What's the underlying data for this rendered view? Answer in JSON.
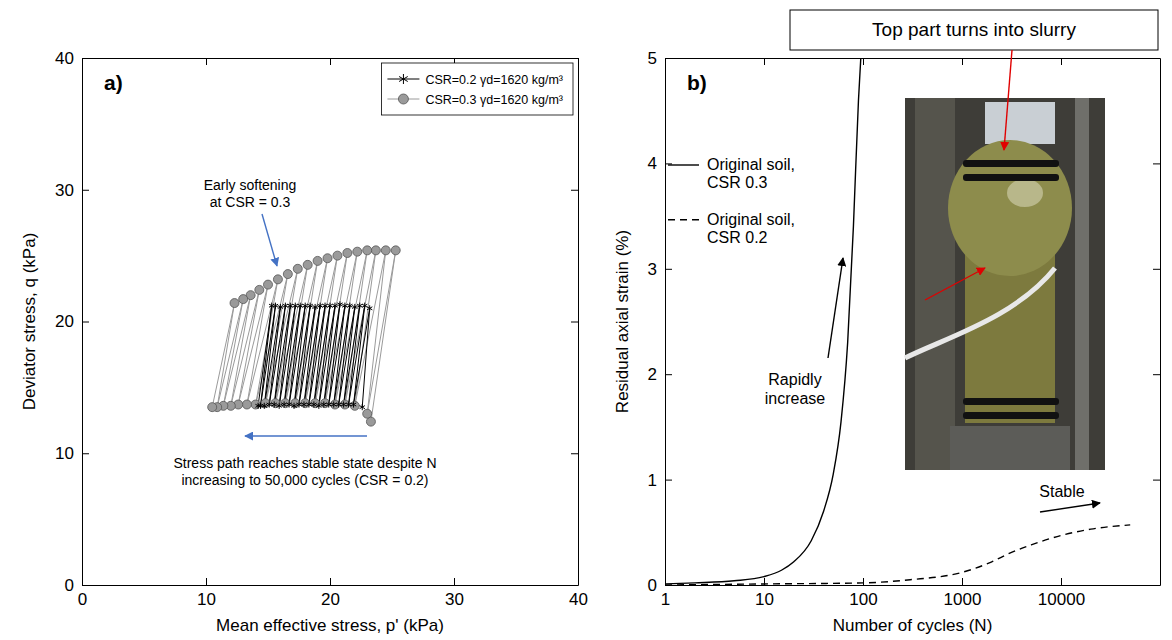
{
  "chart_data": [
    {
      "type": "line",
      "panel_label": "a)",
      "x_label": "Mean effective stress, p' (kPa)",
      "y_label": "Deviator stress, q (kPa)",
      "xlim": [
        0,
        40
      ],
      "xticks": [
        0,
        10,
        20,
        30,
        40
      ],
      "ylim": [
        0,
        40
      ],
      "yticks": [
        0,
        10,
        20,
        30,
        40
      ],
      "grid": false,
      "legend": "upper right",
      "series": [
        {
          "name": "CSR=0.2 γd=1620 kg/m³",
          "color": "#000000",
          "marker": "asterisk",
          "line_style": "solid",
          "x": [
            22.6,
            23.2,
            21.9,
            22.8,
            21.5,
            22.4,
            21.1,
            22.0,
            20.7,
            21.6,
            20.3,
            21.2,
            19.9,
            20.8,
            19.5,
            20.4,
            19.1,
            20.0,
            18.7,
            19.6,
            18.3,
            19.2,
            17.9,
            18.8,
            17.5,
            18.4,
            17.1,
            18.0,
            16.7,
            17.6,
            16.3,
            17.2,
            15.9,
            16.8,
            15.5,
            16.4,
            15.1,
            16.0,
            14.7,
            15.6,
            14.4,
            15.3,
            14.2
          ],
          "values": [
            13.5,
            21.0,
            13.7,
            21.2,
            13.7,
            21.2,
            13.7,
            21.1,
            13.7,
            21.2,
            13.7,
            21.2,
            13.7,
            21.3,
            13.7,
            21.2,
            13.6,
            21.2,
            13.7,
            21.2,
            13.7,
            21.2,
            13.7,
            21.1,
            13.7,
            21.2,
            13.6,
            21.2,
            13.7,
            21.2,
            13.7,
            21.2,
            13.6,
            21.2,
            13.7,
            21.2,
            13.7,
            21.1,
            13.6,
            21.2,
            13.6,
            21.2,
            13.6
          ]
        },
        {
          "name": "CSR=0.3 γd=1620 kg/m³",
          "color": "#9a9a9a",
          "marker": "circle",
          "line_style": "solid",
          "x": [
            23.3,
            25.3,
            23.0,
            24.5,
            22.0,
            23.7,
            21.2,
            23.0,
            20.4,
            22.2,
            19.6,
            21.4,
            18.8,
            20.6,
            18.0,
            19.8,
            17.2,
            19.0,
            16.4,
            18.2,
            15.6,
            17.4,
            14.8,
            16.6,
            14.0,
            15.8,
            13.3,
            15.0,
            12.6,
            14.3,
            12.0,
            13.6,
            11.4,
            13.0,
            10.9,
            12.3,
            10.5
          ],
          "values": [
            12.4,
            25.4,
            13.0,
            25.4,
            13.6,
            25.4,
            13.7,
            25.4,
            13.7,
            25.3,
            13.8,
            25.2,
            13.8,
            25.0,
            13.8,
            24.8,
            13.8,
            24.6,
            13.8,
            24.3,
            13.8,
            24.0,
            13.8,
            23.6,
            13.7,
            23.2,
            13.7,
            22.8,
            13.7,
            22.4,
            13.6,
            22.0,
            13.6,
            21.7,
            13.5,
            21.4,
            13.5
          ]
        }
      ],
      "annotations": [
        {
          "text": "Early softening\nat CSR = 0.3"
        },
        {
          "text": "Stress path reaches stable state despite N\nincreasing to 50,000 cycles (CSR = 0.2)"
        }
      ]
    },
    {
      "type": "line",
      "panel_label": "b)",
      "x_label": "Number of cycles (N)",
      "y_label": "Residual axial strain (%)",
      "log": "x",
      "xlim": [
        1,
        100000
      ],
      "xticks": [
        1,
        10,
        100,
        1000,
        10000
      ],
      "ylim": [
        0,
        5
      ],
      "yticks": [
        0,
        1,
        2,
        3,
        4,
        5
      ],
      "grid": false,
      "legend": "upper left",
      "series": [
        {
          "name": "Original soil, CSR 0.3",
          "color": "#000000",
          "line_style": "solid",
          "x": [
            1,
            2,
            5,
            10,
            15,
            20,
            30,
            40,
            50,
            60,
            70,
            80,
            90,
            95
          ],
          "values": [
            0.01,
            0.02,
            0.04,
            0.08,
            0.14,
            0.22,
            0.42,
            0.7,
            1.05,
            1.55,
            2.3,
            3.4,
            4.6,
            5.0
          ]
        },
        {
          "name": "Original soil, CSR 0.2",
          "color": "#000000",
          "line_style": "dashed",
          "x": [
            1,
            10,
            100,
            300,
            1000,
            2000,
            3000,
            5000,
            10000,
            20000,
            50000
          ],
          "values": [
            0,
            0.01,
            0.02,
            0.05,
            0.12,
            0.22,
            0.3,
            0.38,
            0.47,
            0.53,
            0.57
          ]
        }
      ],
      "annotations": [
        {
          "text": "Top part turns into slurry"
        },
        {
          "text": "Rapidly\nincrease"
        },
        {
          "text": "Stable"
        }
      ]
    }
  ]
}
